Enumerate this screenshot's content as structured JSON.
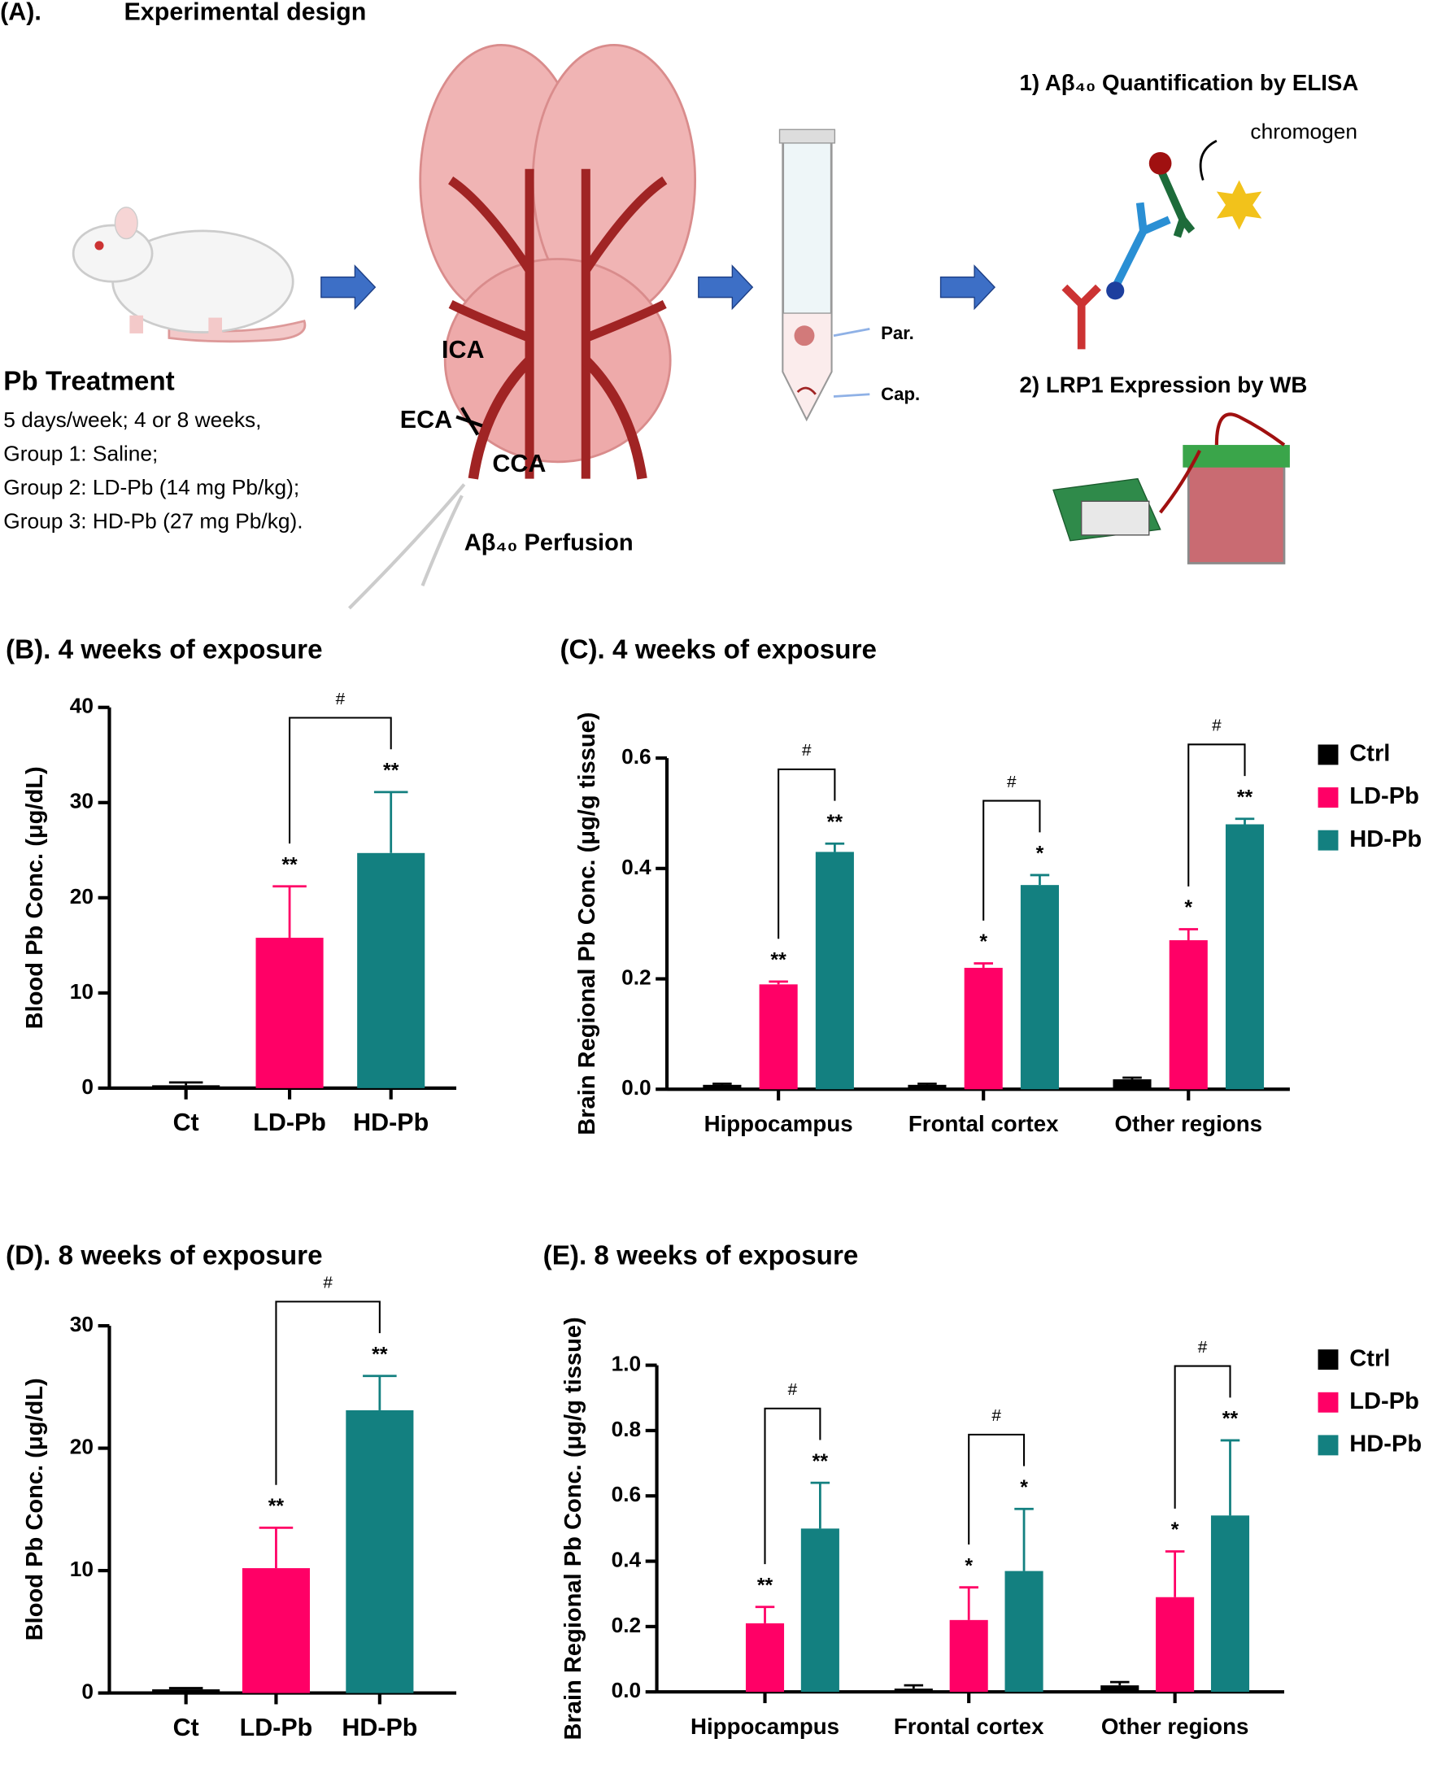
{
  "design": {
    "label": "(A).",
    "title": "Experimental design",
    "treatment": {
      "title": "Pb Treatment",
      "lines": [
        "5 days/week; 4 or 8 weeks,",
        "Group 1: Saline;",
        "Group 2: LD-Pb (14 mg Pb/kg);",
        "Group 3: HD-Pb (27 mg Pb/kg)."
      ]
    },
    "brain_labels": {
      "ica": "ICA",
      "eca": "ECA",
      "cca": "CCA",
      "perfusion": "Aβ₄₀ Perfusion"
    },
    "tube_labels": {
      "par": "Par.",
      "cap": "Cap."
    },
    "assays": {
      "elisa": "1) Aβ₄₀ Quantification by ELISA",
      "chromogen": "chromogen",
      "wb": "2) LRP1 Expression by WB"
    }
  },
  "chart_data": [
    {
      "type": "bar",
      "title": "(B). 4 weeks of exposure",
      "y_label": "Blood Pb Conc. (μg/dL)",
      "categories": [
        "Ct",
        "LD-Pb",
        "HD-Pb"
      ],
      "values": [
        0.3,
        15.8,
        24.7
      ],
      "errors": [
        0.3,
        5.4,
        6.4
      ],
      "colors": [
        "#000000",
        "#ff0066",
        "#138080"
      ],
      "significance": [
        null,
        "**",
        "**"
      ],
      "comparison": "#",
      "ylim": [
        0,
        40
      ],
      "yticks": [
        0,
        10,
        20,
        30,
        40
      ]
    },
    {
      "type": "bar",
      "title": "(C). 4 weeks of exposure",
      "y_label": "Brain Regional Pb Conc. (μg/g tissue)",
      "categories": [
        "Hippocampus",
        "Frontal cortex",
        "Other regions"
      ],
      "series": [
        {
          "name": "Ctrl",
          "color": "#000000",
          "values": [
            0.008,
            0.008,
            0.018
          ],
          "errors": [
            0.002,
            0.002,
            0.003
          ]
        },
        {
          "name": "LD-Pb",
          "color": "#ff0066",
          "values": [
            0.19,
            0.22,
            0.27
          ],
          "errors": [
            0.005,
            0.008,
            0.02
          ],
          "significance": [
            "**",
            "*",
            "*"
          ]
        },
        {
          "name": "HD-Pb",
          "color": "#138080",
          "values": [
            0.43,
            0.37,
            0.48
          ],
          "errors": [
            0.015,
            0.018,
            0.01
          ],
          "significance": [
            "**",
            "*",
            "**"
          ]
        }
      ],
      "comparison": "#",
      "legend": "right",
      "ylim": [
        0,
        0.6
      ],
      "yticks": [
        {
          "value": 0,
          "label": "0.0"
        },
        0.2,
        0.4,
        0.6
      ]
    },
    {
      "type": "bar",
      "title": "(D). 8 weeks of exposure",
      "y_label": "Blood Pb Conc. (μg/dL)",
      "categories": [
        "Ct",
        "LD-Pb",
        "HD-Pb"
      ],
      "values": [
        0.3,
        10.2,
        23.1
      ],
      "errors": [
        0.1,
        3.3,
        2.8
      ],
      "colors": [
        "#000000",
        "#ff0066",
        "#138080"
      ],
      "significance": [
        null,
        "**",
        "**"
      ],
      "comparison": "#",
      "ylim": [
        0,
        30
      ],
      "yticks": [
        0,
        10,
        20,
        30
      ]
    },
    {
      "type": "bar",
      "title": "(E). 8 weeks of exposure",
      "y_label": "Brain Regional Pb Conc. (μg/g tissue)",
      "categories": [
        "Hippocampus",
        "Frontal cortex",
        "Other regions"
      ],
      "series": [
        {
          "name": "Ctrl",
          "color": "#000000",
          "values": [
            0,
            0.01,
            0.02
          ],
          "errors": [
            0,
            0.01,
            0.01
          ]
        },
        {
          "name": "LD-Pb",
          "color": "#ff0066",
          "values": [
            0.21,
            0.22,
            0.29
          ],
          "errors": [
            0.05,
            0.1,
            0.14
          ],
          "significance": [
            "**",
            "*",
            "*"
          ]
        },
        {
          "name": "HD-Pb",
          "color": "#138080",
          "values": [
            0.5,
            0.37,
            0.54
          ],
          "errors": [
            0.14,
            0.19,
            0.23
          ],
          "significance": [
            "**",
            "*",
            "**"
          ]
        }
      ],
      "comparison": "#",
      "legend": "right",
      "ylim": [
        0,
        1.0
      ],
      "yticks": [
        {
          "value": 0,
          "label": "0.0"
        },
        0.2,
        0.4,
        0.6,
        0.8,
        {
          "value": 1.0,
          "label": "1.0"
        }
      ]
    }
  ]
}
